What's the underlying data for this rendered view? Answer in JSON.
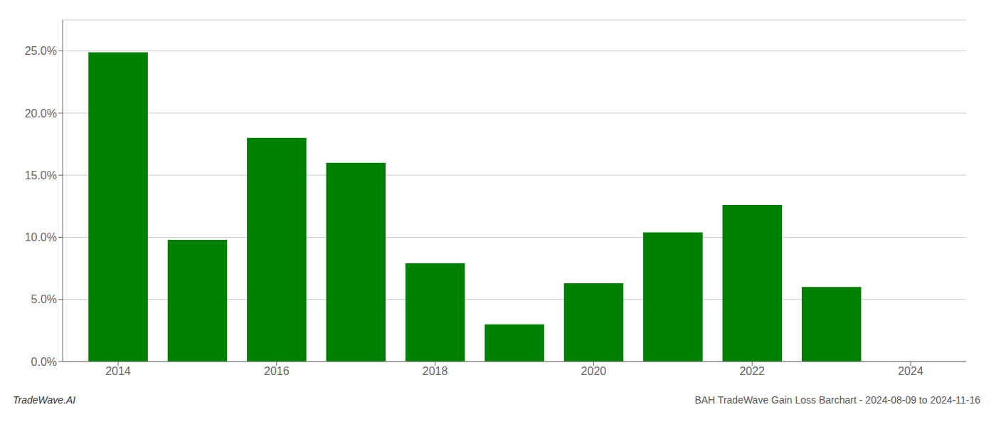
{
  "chart_data": {
    "type": "bar",
    "title": "BAH TradeWave Gain Loss Barchart - 2024-08-09 to 2024-11-16",
    "annotations": [
      "TradeWave.AI"
    ],
    "x": [
      2014,
      2015,
      2016,
      2017,
      2018,
      2019,
      2020,
      2021,
      2022,
      2023
    ],
    "values": [
      0.249,
      0.098,
      0.18,
      0.16,
      0.079,
      0.03,
      0.063,
      0.104,
      0.126,
      0.06
    ],
    "color": "#008000",
    "xlim": [
      2013.3,
      2024.7
    ],
    "xticks": [
      2014,
      2016,
      2018,
      2020,
      2022,
      2024
    ],
    "ylim": [
      0,
      0.275
    ],
    "yticks": [
      {
        "value": 0.0,
        "label": "0.0%"
      },
      {
        "value": 0.05,
        "label": "5.0%"
      },
      {
        "value": 0.1,
        "label": "10.0%"
      },
      {
        "value": 0.15,
        "label": "15.0%"
      },
      {
        "value": 0.2,
        "label": "20.0%"
      },
      {
        "value": 0.25,
        "label": "25.0%"
      }
    ],
    "grid": true
  }
}
